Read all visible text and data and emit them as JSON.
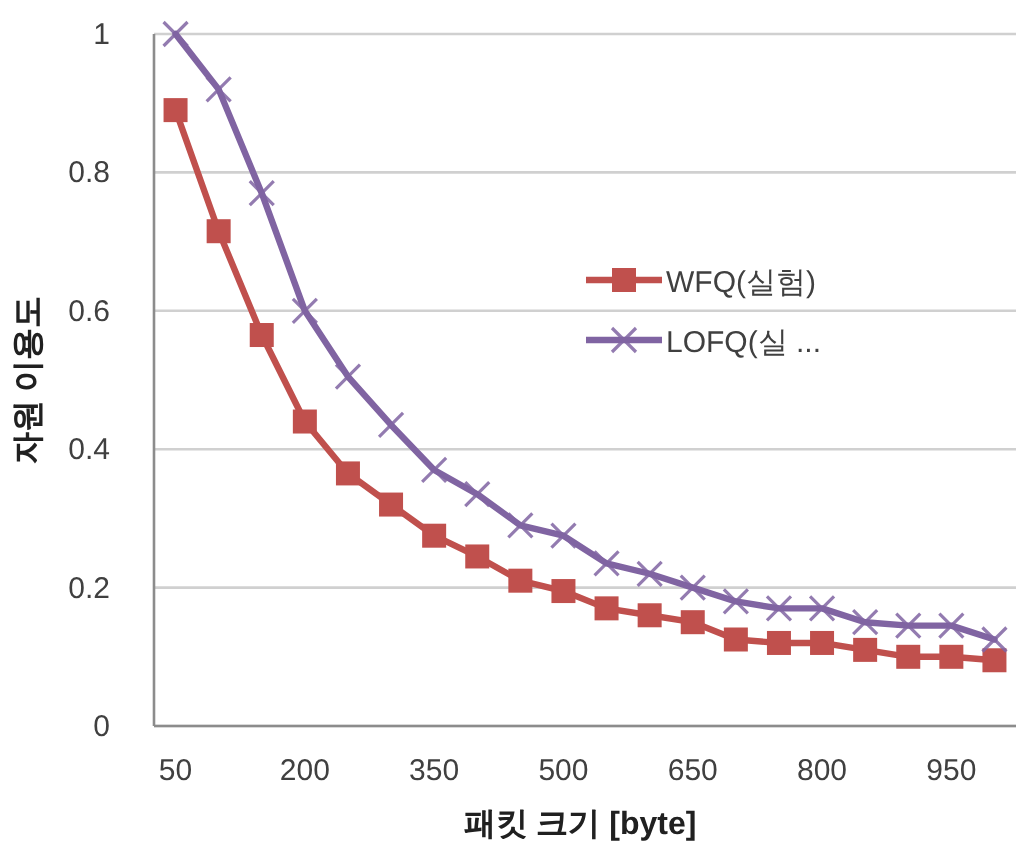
{
  "chart_data": {
    "type": "line",
    "xlabel": "패킷 크기 [byte]",
    "ylabel": "자원 이용도",
    "categories": [
      "50",
      null,
      null,
      "200",
      null,
      null,
      "350",
      null,
      null,
      "500",
      null,
      null,
      "650",
      null,
      null,
      "800",
      null,
      null,
      "950",
      null
    ],
    "series": [
      {
        "name": "WFQ(실험)",
        "color": "#c0504d",
        "marker": "square",
        "values": [
          0.89,
          0.715,
          0.565,
          0.44,
          0.365,
          0.32,
          0.275,
          0.245,
          0.21,
          0.195,
          0.17,
          0.16,
          0.15,
          0.125,
          0.12,
          0.12,
          0.11,
          0.1,
          0.1,
          0.095
        ]
      },
      {
        "name": "LOFQ(실 ...",
        "color": "#8064a2",
        "marker": "cross",
        "values": [
          1.0,
          0.92,
          0.77,
          0.6,
          0.505,
          0.435,
          0.37,
          0.335,
          0.29,
          0.275,
          0.235,
          0.22,
          0.2,
          0.18,
          0.17,
          0.17,
          0.15,
          0.145,
          0.145,
          0.125
        ]
      }
    ],
    "ylim": [
      0,
      1
    ],
    "yticks": [
      0,
      0.2,
      0.4,
      0.6,
      0.8,
      1
    ],
    "grid": "y",
    "legend": "right",
    "line_style": "solid"
  }
}
